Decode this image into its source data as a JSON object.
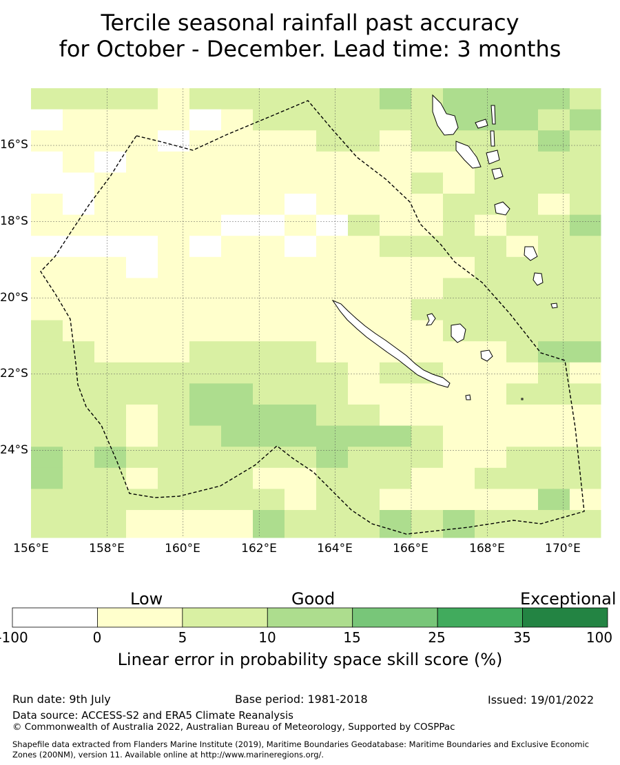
{
  "title": {
    "line1": "Tercile seasonal rainfall past accuracy",
    "line2": "for October - December. Lead time: 3 months"
  },
  "map": {
    "lon_range": [
      156,
      171
    ],
    "lat_range": [
      -26.6,
      -14.8
    ],
    "lat_ticks": [
      "16°S",
      "18°S",
      "20°S",
      "22°S",
      "24°S"
    ],
    "lon_ticks": [
      "156°E",
      "158°E",
      "160°E",
      "162°E",
      "164°E",
      "166°E",
      "168°E",
      "170°E"
    ],
    "grid": true,
    "boundary_style": "dashed"
  },
  "legend": {
    "categories": [
      "Low",
      "Good",
      "Exceptional"
    ],
    "colors": [
      "#ffffff",
      "#ffffcc",
      "#d9f0a3",
      "#addd8e",
      "#78c679",
      "#41ab5d",
      "#238443"
    ],
    "ticks": [
      "-100",
      "0",
      "5",
      "10",
      "15",
      "25",
      "35",
      "100"
    ],
    "label": "Linear error in probability space skill score (%)"
  },
  "footer": {
    "run_date": "Run date: 9th July",
    "base_period": "Base period: 1981-2018",
    "issued": "Issued: 19/01/2022",
    "data_source": "Data source: ACCESS-S2 and ERA5 Climate Reanalysis",
    "copyright": "© Commonwealth of Australia 2022, Australian Bureau of Meteorology, Supported by COSPPac",
    "shapefile_line1": "Shapefile data extracted from Flanders Marine Institute (2019), Maritime Boundaries Geodatabase: Maritime Boundaries and Exclusive Economic",
    "shapefile_line2": "Zones (200NM), version 11. Available online at http://www.marineregions.org/."
  }
}
